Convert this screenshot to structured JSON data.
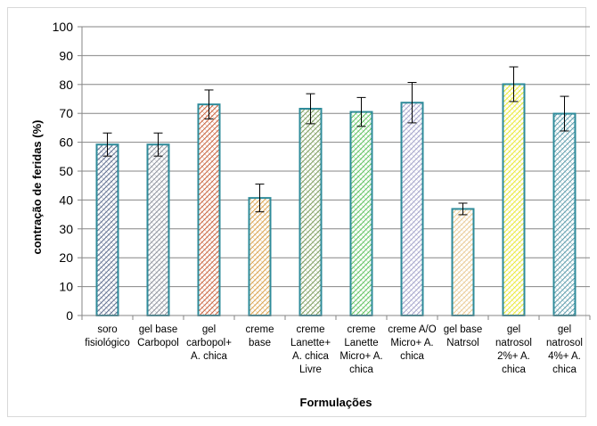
{
  "chart_data": {
    "type": "bar",
    "xlabel": "Formulações",
    "ylabel": "contração de feridas (%)",
    "ylim": [
      0,
      100
    ],
    "yticks": [
      0,
      10,
      20,
      30,
      40,
      50,
      60,
      70,
      80,
      90,
      100
    ],
    "grid": true,
    "categories": [
      [
        "soro",
        "fisiológico"
      ],
      [
        "gel base",
        "Carbopol"
      ],
      [
        "gel",
        "carbopol+",
        "A. chica"
      ],
      [
        "creme",
        "base"
      ],
      [
        "creme",
        "Lanette+",
        "A. chica",
        "Livre"
      ],
      [
        "creme",
        "Lanette",
        "Micro+ A.",
        "chica"
      ],
      [
        "creme A/O",
        "Micro+ A.",
        "chica"
      ],
      [
        "gel base",
        "Natrsol"
      ],
      [
        "gel",
        "natrosol",
        "2%+ A.",
        "chica"
      ],
      [
        "gel",
        "natrosol",
        "4%+ A.",
        "chica"
      ]
    ],
    "values": [
      59.2,
      59.2,
      73.1,
      40.7,
      71.6,
      70.5,
      73.7,
      36.9,
      80.1,
      69.9
    ],
    "errors": [
      4.0,
      4.0,
      5.0,
      4.8,
      5.2,
      5.0,
      7.0,
      2.0,
      6.0,
      6.0
    ],
    "colors": [
      "#5a6a8c",
      "#8a8f9a",
      "#c8603a",
      "#d9a04a",
      "#7a9a5a",
      "#5ac05a",
      "#a0a0c8",
      "#e8c890",
      "#e8e830",
      "#5a9aaa"
    ],
    "bar_outline": "#2e8b9a"
  }
}
